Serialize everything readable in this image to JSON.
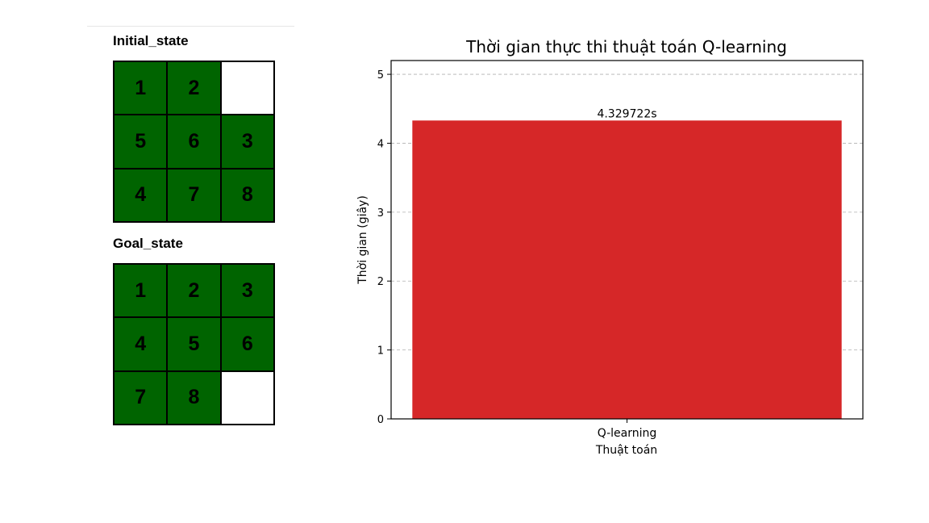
{
  "initial_state": {
    "title": "Initial_state",
    "cells": [
      "1",
      "2",
      "",
      "5",
      "6",
      "3",
      "4",
      "7",
      "8"
    ]
  },
  "goal_state": {
    "title": "Goal_state",
    "cells": [
      "1",
      "2",
      "3",
      "4",
      "5",
      "6",
      "7",
      "8",
      ""
    ]
  },
  "colors": {
    "tile": "#006400",
    "blank": "#ffffff",
    "bar": "#d62728"
  },
  "chart_data": {
    "type": "bar",
    "title": "Thời gian thực thi thuật toán Q-learning",
    "xlabel": "Thuật toán",
    "ylabel": "Thời gian (giây)",
    "categories": [
      "Q-learning"
    ],
    "values": [
      4.329722
    ],
    "value_labels": [
      "4.329722s"
    ],
    "ylim": [
      0,
      5.2
    ],
    "yticks": [
      0,
      1,
      2,
      3,
      4,
      5
    ],
    "grid": "y-dashed"
  }
}
